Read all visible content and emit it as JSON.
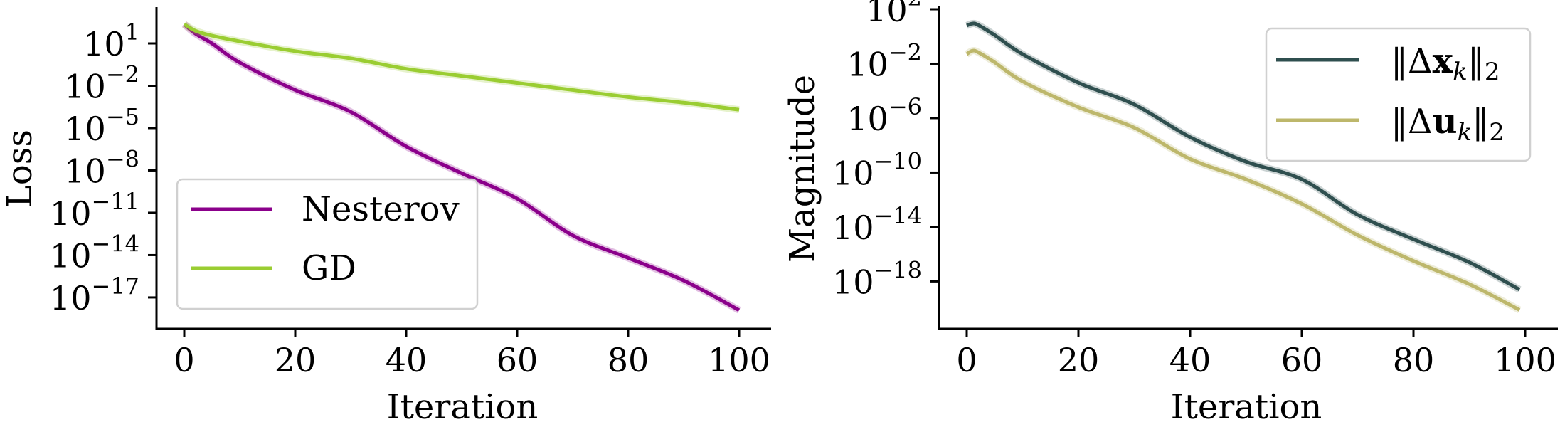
{
  "chart_data": [
    {
      "type": "line",
      "panel": "left",
      "title": "",
      "xlabel": "Iteration",
      "ylabel": "Loss",
      "yscale": "log",
      "xlim": [
        -3.5,
        104
      ],
      "ylim_log10": [
        -18.8,
        3.4
      ],
      "xticks": [
        0,
        20,
        40,
        60,
        80,
        100
      ],
      "xtick_labels": [
        "0",
        "20",
        "40",
        "60",
        "80",
        "100"
      ],
      "yticks_log10": [
        1,
        -2,
        -5,
        -8,
        -11,
        -14,
        -17
      ],
      "ytick_labels": [
        {
          "base": "10",
          "exp": "1"
        },
        {
          "base": "10",
          "exp": "−2"
        },
        {
          "base": "10",
          "exp": "−5"
        },
        {
          "base": "10",
          "exp": "−8"
        },
        {
          "base": "10",
          "exp": "−11"
        },
        {
          "base": "10",
          "exp": "−14"
        },
        {
          "base": "10",
          "exp": "−17"
        }
      ],
      "grid": false,
      "legend_position": "lower left",
      "x": [
        0,
        2,
        5,
        10,
        20,
        30,
        40,
        50,
        60,
        70,
        80,
        90,
        100
      ],
      "series": [
        {
          "name": "Nesterov",
          "color": "#8b008b",
          "log10_values": [
            2.36,
            1.7,
            1.0,
            -0.36,
            -2.3,
            -3.85,
            -6.3,
            -8.2,
            -10.0,
            -12.6,
            -14.2,
            -15.8,
            -17.9
          ]
        },
        {
          "name": "GD",
          "color": "#9acd32",
          "log10_values": [
            2.36,
            1.9,
            1.55,
            1.15,
            0.45,
            -0.06,
            -0.8,
            -1.3,
            -1.8,
            -2.3,
            -2.8,
            -3.2,
            -3.7
          ]
        }
      ]
    },
    {
      "type": "line",
      "panel": "right",
      "title": "",
      "xlabel": "Iteration",
      "ylabel": "Magnitude",
      "yscale": "log",
      "xlim": [
        -4.5,
        103
      ],
      "ylim_log10": [
        -21.6,
        2.6
      ],
      "xticks": [
        0,
        20,
        40,
        60,
        80,
        100
      ],
      "xtick_labels": [
        "0",
        "20",
        "40",
        "60",
        "80",
        "100"
      ],
      "yticks_log10": [
        2,
        -2,
        -6,
        -10,
        -14,
        -18
      ],
      "ytick_labels": [
        {
          "base": "10",
          "exp": "2"
        },
        {
          "base": "10",
          "exp": "−2"
        },
        {
          "base": "10",
          "exp": "−6"
        },
        {
          "base": "10",
          "exp": "−10"
        },
        {
          "base": "10",
          "exp": "−14"
        },
        {
          "base": "10",
          "exp": "−18"
        }
      ],
      "grid": false,
      "legend_position": "upper right",
      "x": [
        0,
        1,
        2,
        5,
        10,
        20,
        30,
        40,
        50,
        60,
        70,
        80,
        90,
        99
      ],
      "series": [
        {
          "name": "||Δx_k||_2",
          "color": "#2f4f4f",
          "log10_values": [
            0.8,
            0.95,
            0.85,
            0.1,
            -1.3,
            -3.4,
            -5.0,
            -7.4,
            -9.2,
            -10.5,
            -13.1,
            -14.9,
            -16.6,
            -18.6
          ]
        },
        {
          "name": "||Δu_k||_2",
          "color": "#bdb76b",
          "log10_values": [
            -1.3,
            -1.05,
            -1.15,
            -1.9,
            -3.3,
            -5.2,
            -6.7,
            -9.0,
            -10.5,
            -12.3,
            -14.6,
            -16.5,
            -18.2,
            -20.1
          ]
        }
      ]
    }
  ],
  "left_panel": {
    "ylabel": "Loss",
    "xlabel": "Iteration",
    "legend": [
      {
        "label": "Nesterov",
        "color": "#8b008b"
      },
      {
        "label": "GD",
        "color": "#9acd32"
      }
    ]
  },
  "right_panel": {
    "ylabel": "Magnitude",
    "xlabel": "Iteration",
    "legend": [
      {
        "label_parts": {
          "open": "‖Δ",
          "bold": "x",
          "sub": "k",
          "close": "‖",
          "norm": "2"
        },
        "color": "#2f4f4f"
      },
      {
        "label_parts": {
          "open": "‖Δ",
          "bold": "u",
          "sub": "k",
          "close": "‖",
          "norm": "2"
        },
        "color": "#bdb76b"
      }
    ]
  }
}
